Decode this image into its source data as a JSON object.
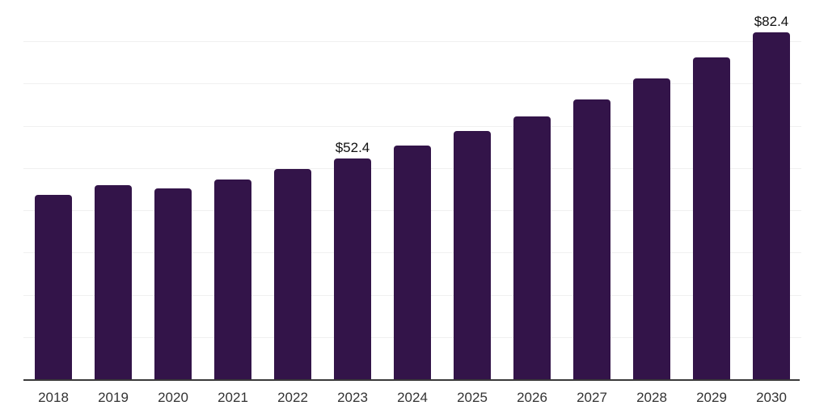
{
  "chart_data": {
    "type": "bar",
    "title": "",
    "categories": [
      "2018",
      "2019",
      "2020",
      "2021",
      "2022",
      "2023",
      "2024",
      "2025",
      "2026",
      "2027",
      "2028",
      "2029",
      "2030"
    ],
    "values": [
      43.9,
      46.2,
      45.3,
      47.4,
      50.0,
      52.4,
      55.6,
      58.9,
      62.5,
      66.5,
      71.4,
      76.5,
      82.4
    ],
    "data_labels": [
      "",
      "",
      "",
      "",
      "",
      "$52.4",
      "",
      "",
      "",
      "",
      "",
      "",
      "$82.4"
    ],
    "xlabel": "",
    "ylabel": "",
    "ylim": [
      0,
      90
    ],
    "gridline_step": 10,
    "grid": true,
    "legend_position": "none",
    "y_tick_labels_visible": false,
    "colors": {
      "bar": "#331449",
      "gridline": "#f0f0f0",
      "axis_line": "#3a3a3a",
      "tick_label": "#333333",
      "data_label": "#111111"
    }
  }
}
